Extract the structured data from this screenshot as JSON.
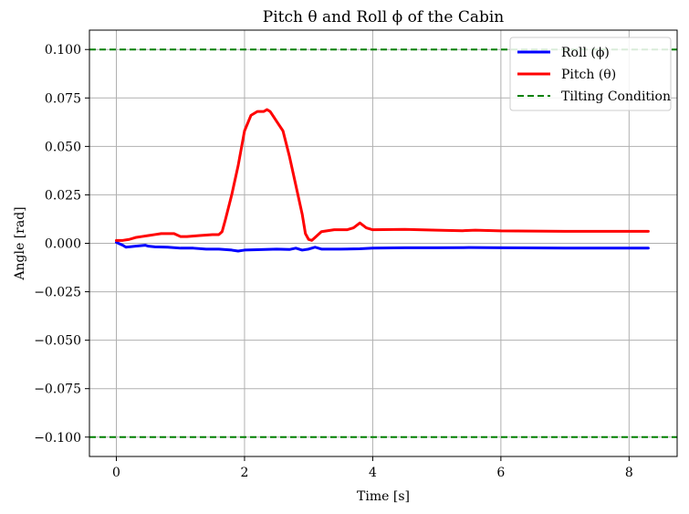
{
  "chart_data": {
    "type": "line",
    "title": "Pitch θ and Roll ϕ of the Cabin",
    "xlabel": "Time [s]",
    "ylabel": "Angle [rad]",
    "xlim": [
      -0.42,
      8.75
    ],
    "ylim": [
      -0.11,
      0.11
    ],
    "x_ticks": [
      0,
      2,
      4,
      6,
      8
    ],
    "y_ticks": [
      0.1,
      0.075,
      0.05,
      0.025,
      0.0,
      -0.025,
      -0.05,
      -0.075,
      -0.1
    ],
    "x_tick_labels": [
      "0",
      "2",
      "4",
      "6",
      "8"
    ],
    "y_tick_labels": [
      "0.100",
      "0.075",
      "0.050",
      "0.025",
      "0.000",
      "−0.025",
      "−0.050",
      "−0.075",
      "−0.100"
    ],
    "grid": true,
    "legend_position": "top-right",
    "series": [
      {
        "name": "Roll (ϕ)",
        "color": "#0000ff",
        "style": "solid",
        "x": [
          0,
          0.1,
          0.15,
          0.2,
          0.3,
          0.45,
          0.5,
          0.6,
          0.8,
          1.0,
          1.2,
          1.4,
          1.6,
          1.8,
          1.9,
          2.0,
          2.2,
          2.5,
          2.7,
          2.8,
          2.9,
          3.0,
          3.05,
          3.1,
          3.2,
          3.5,
          3.8,
          4.0,
          4.5,
          5.0,
          5.5,
          6.0,
          7.0,
          8.3
        ],
        "y": [
          0.0005,
          -0.001,
          -0.002,
          -0.0018,
          -0.0015,
          -0.001,
          -0.0015,
          -0.0018,
          -0.002,
          -0.0025,
          -0.0025,
          -0.003,
          -0.003,
          -0.0035,
          -0.004,
          -0.0035,
          -0.0033,
          -0.003,
          -0.0032,
          -0.0025,
          -0.0035,
          -0.003,
          -0.0025,
          -0.002,
          -0.003,
          -0.003,
          -0.0028,
          -0.0025,
          -0.0023,
          -0.0023,
          -0.0022,
          -0.0023,
          -0.0025,
          -0.0025
        ]
      },
      {
        "name": "Pitch (θ)",
        "color": "#ff0000",
        "style": "solid",
        "x": [
          0,
          0.1,
          0.2,
          0.3,
          0.4,
          0.5,
          0.6,
          0.7,
          0.8,
          0.9,
          1.0,
          1.1,
          1.3,
          1.5,
          1.6,
          1.65,
          1.7,
          1.8,
          1.9,
          2.0,
          2.1,
          2.2,
          2.3,
          2.35,
          2.4,
          2.5,
          2.6,
          2.7,
          2.8,
          2.9,
          2.95,
          3.0,
          3.05,
          3.1,
          3.2,
          3.4,
          3.6,
          3.7,
          3.8,
          3.9,
          4.0,
          4.5,
          5.0,
          5.4,
          5.6,
          6.0,
          7.0,
          8.3
        ],
        "y": [
          0.0015,
          0.0015,
          0.002,
          0.003,
          0.0035,
          0.004,
          0.0045,
          0.005,
          0.005,
          0.005,
          0.0035,
          0.0035,
          0.004,
          0.0045,
          0.0045,
          0.006,
          0.012,
          0.025,
          0.04,
          0.058,
          0.066,
          0.068,
          0.068,
          0.069,
          0.068,
          0.063,
          0.058,
          0.045,
          0.03,
          0.015,
          0.005,
          0.002,
          0.0015,
          0.003,
          0.006,
          0.007,
          0.007,
          0.008,
          0.0105,
          0.008,
          0.007,
          0.0072,
          0.0068,
          0.0065,
          0.0068,
          0.0064,
          0.0062,
          0.0062
        ]
      },
      {
        "name": "Tilting Condition",
        "color": "#008000",
        "style": "dashed",
        "y_lines": [
          0.1,
          -0.1
        ]
      }
    ]
  }
}
